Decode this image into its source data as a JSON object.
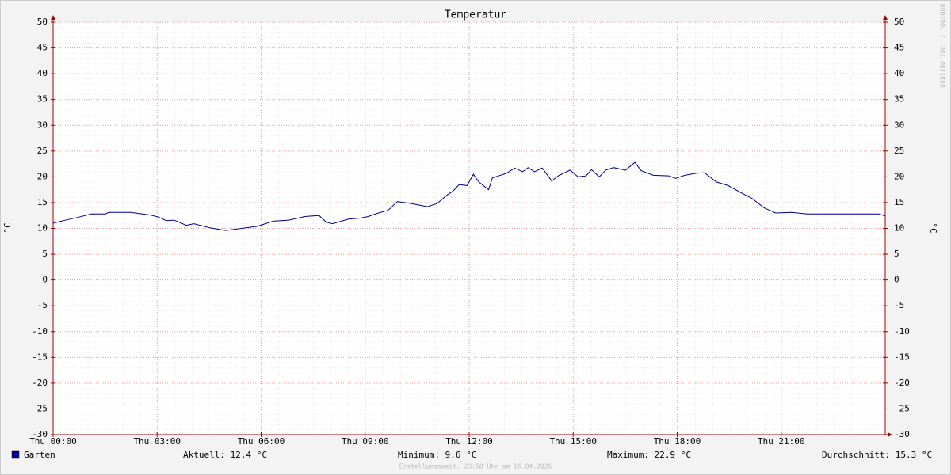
{
  "chart_data": {
    "type": "line",
    "title": "Temperatur",
    "y_label": "°C",
    "y2_label": "°C",
    "watermark": "RRDTOOL / TOBI OETIKER",
    "x": [
      0,
      0.3,
      0.75,
      1.1,
      1.51,
      1.6,
      2.24,
      2.81,
      3.04,
      3.26,
      3.49,
      3.84,
      4.06,
      4.52,
      4.98,
      5.89,
      6.35,
      6.8,
      7.26,
      7.67,
      7.88,
      8.06,
      8.52,
      8.86,
      9.09,
      9.38,
      9.66,
      9.93,
      10.34,
      10.8,
      11.07,
      11.37,
      11.53,
      11.71,
      11.94,
      12.12,
      12.28,
      12.56,
      12.67,
      13.08,
      13.31,
      13.54,
      13.7,
      13.88,
      14.11,
      14.38,
      14.57,
      14.91,
      15.14,
      15.37,
      15.53,
      15.75,
      15.94,
      16.16,
      16.51,
      16.78,
      16.96,
      17.31,
      17.76,
      17.95,
      18.22,
      18.56,
      18.79,
      19.13,
      19.47,
      19.82,
      20.16,
      20.5,
      20.84,
      21.3,
      21.76,
      23.81,
      24
    ],
    "series": [
      {
        "name": "Garten",
        "color": "#000090",
        "values": [
          11.0,
          11.5,
          12.2,
          12.8,
          12.8,
          13.1,
          13.1,
          12.6,
          12.2,
          11.5,
          11.6,
          10.6,
          10.9,
          10.1,
          9.6,
          10.4,
          11.4,
          11.6,
          12.3,
          12.5,
          11.2,
          10.9,
          11.8,
          12.0,
          12.3,
          13.0,
          13.5,
          15.2,
          14.8,
          14.2,
          14.8,
          16.5,
          17.2,
          18.5,
          18.3,
          20.5,
          19.0,
          17.5,
          19.8,
          20.7,
          21.7,
          21.0,
          21.8,
          21.0,
          21.7,
          19.2,
          20.2,
          21.3,
          20.0,
          20.2,
          21.4,
          20.0,
          21.3,
          21.8,
          21.3,
          22.8,
          21.2,
          20.3,
          20.2,
          19.7,
          20.3,
          20.7,
          20.8,
          19.0,
          18.3,
          17.0,
          15.8,
          14.0,
          13.0,
          13.1,
          12.8,
          12.8,
          12.4
        ]
      }
    ],
    "xlim": [
      0,
      24
    ],
    "xticks": [
      {
        "value": 0,
        "label": "Thu 00:00"
      },
      {
        "value": 3,
        "label": "Thu 03:00"
      },
      {
        "value": 6,
        "label": "Thu 06:00"
      },
      {
        "value": 9,
        "label": "Thu 09:00"
      },
      {
        "value": 12,
        "label": "Thu 12:00"
      },
      {
        "value": 15,
        "label": "Thu 15:00"
      },
      {
        "value": 18,
        "label": "Thu 18:00"
      },
      {
        "value": 21,
        "label": "Thu 21:00"
      }
    ],
    "ylim": [
      -30,
      50
    ],
    "yticks": [
      -30,
      -25,
      -20,
      -15,
      -10,
      -5,
      0,
      5,
      10,
      15,
      20,
      25,
      30,
      35,
      40,
      45,
      50
    ],
    "grid": true,
    "stats": [
      "Aktuell: 12.4 °C",
      "Minimum: 9.6 °C",
      "Maximum: 22.9 °C",
      "Durchschnitt: 15.3 °C"
    ],
    "footer": "Erstellungszeit: 23:58 Uhr am 16.04.2026"
  }
}
